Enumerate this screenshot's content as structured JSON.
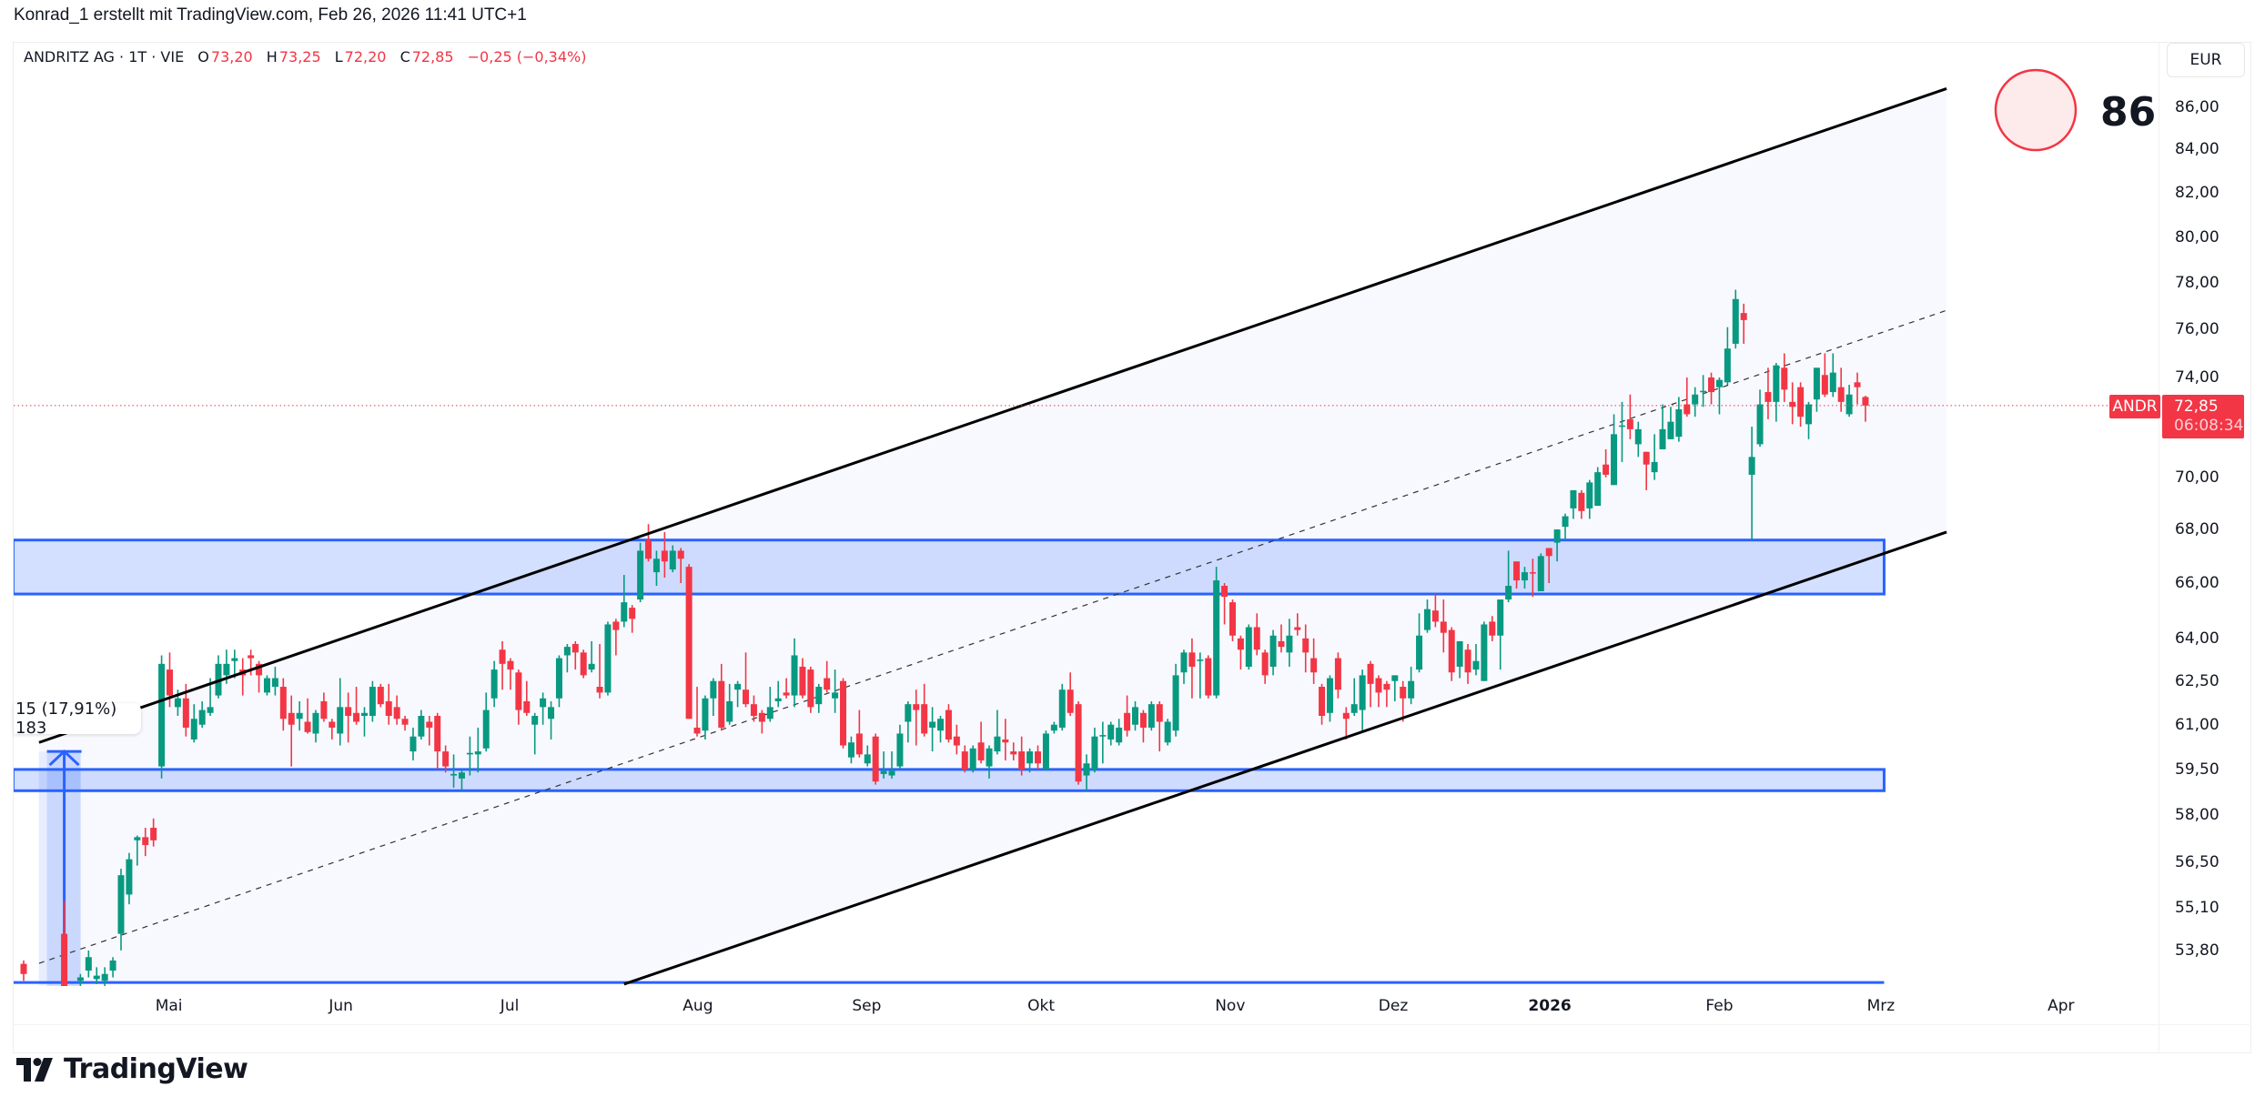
{
  "header": {
    "text": "Konrad_1 erstellt mit TradingView.com, Feb 26, 2026 11:41 UTC+1"
  },
  "legend": {
    "symbol": "ANDRITZ AG · 1T · VIE",
    "o_label": "O",
    "o": "73,20",
    "h_label": "H",
    "h": "73,25",
    "l_label": "L",
    "l": "72,20",
    "c_label": "C",
    "c": "72,85",
    "change": "−0,25 (−0,34%)"
  },
  "price_axis": {
    "currency": "EUR",
    "labels": [
      "86,00",
      "84,00",
      "82,00",
      "80,00",
      "78,00",
      "76,00",
      "74,00",
      "70,00",
      "68,00",
      "66,00",
      "64,00",
      "62,50",
      "61,00",
      "59,50",
      "58,00",
      "56,50",
      "55,10",
      "53,80"
    ],
    "symbol_tag": "ANDR",
    "last_price": "72,85",
    "countdown": "06:08:34"
  },
  "score": {
    "value": "86"
  },
  "measure": {
    "label": "15 (17,91%) 183"
  },
  "logo": {
    "text": "TradingView"
  },
  "colors": {
    "up": "#089981",
    "down": "#f23645",
    "zone": "#2962ff",
    "channel": "#000000"
  },
  "chart_data": {
    "type": "candlestick",
    "title": "ANDRITZ AG · 1T · VIE",
    "scale": "log",
    "ylim": [
      52.85,
      86.9
    ],
    "x_ticks": [
      {
        "label": "Mai",
        "bar": 17.9
      },
      {
        "label": "Jun",
        "bar": 39.1
      },
      {
        "label": "Jul",
        "bar": 59.9
      },
      {
        "label": "Aug",
        "bar": 83.1
      },
      {
        "label": "Sep",
        "bar": 103.9
      },
      {
        "label": "Okt",
        "bar": 125.4
      },
      {
        "label": "Nov",
        "bar": 148.7
      },
      {
        "label": "Dez",
        "bar": 168.8
      },
      {
        "label": "2026",
        "bar": 188.1,
        "bold": true
      },
      {
        "label": "Feb",
        "bar": 209
      },
      {
        "label": "Mrz",
        "bar": 228.9
      },
      {
        "label": "Apr",
        "bar": 251.1
      }
    ],
    "ohlc": [
      [
        53.4,
        53.5,
        52.9,
        53.1
      ],
      null,
      null,
      null,
      null,
      [
        54.3,
        55.3,
        50.8,
        51.6
      ],
      null,
      [
        52.9,
        53.1,
        52.7,
        53.0
      ],
      [
        53.2,
        53.8,
        53.0,
        53.6
      ],
      [
        52.95,
        53.3,
        52.8,
        53.05
      ],
      [
        52.9,
        53.3,
        52.7,
        53.1
      ],
      [
        53.2,
        53.6,
        53.0,
        53.5
      ],
      [
        54.3,
        56.3,
        53.8,
        56.1
      ],
      [
        55.5,
        56.8,
        55.2,
        56.6
      ],
      [
        57.2,
        57.35,
        56.4,
        57.3
      ],
      [
        57.3,
        57.6,
        56.7,
        57.05
      ],
      [
        57.6,
        57.9,
        57.0,
        57.2
      ],
      [
        59.6,
        63.4,
        59.2,
        63.1
      ],
      [
        62.9,
        63.5,
        61.6,
        62.0
      ],
      [
        61.6,
        62.2,
        61.3,
        61.9
      ],
      [
        61.9,
        62.4,
        60.6,
        60.9
      ],
      [
        60.5,
        61.7,
        60.4,
        61.2
      ],
      [
        61.0,
        61.8,
        60.9,
        61.5
      ],
      [
        61.4,
        62.6,
        61.3,
        61.6
      ],
      [
        62.0,
        63.4,
        61.9,
        63.1
      ],
      [
        62.7,
        63.6,
        62.4,
        63.1
      ],
      [
        63.2,
        63.6,
        62.6,
        63.3
      ],
      [
        62.9,
        63.3,
        62.0,
        62.7
      ],
      [
        63.4,
        63.6,
        62.7,
        63.3
      ],
      [
        63.1,
        63.2,
        62.1,
        62.7
      ],
      [
        62.1,
        62.7,
        62.0,
        62.6
      ],
      [
        62.3,
        63.0,
        62.0,
        62.6
      ],
      [
        62.3,
        62.6,
        60.8,
        61.2
      ],
      [
        61.4,
        62.0,
        59.6,
        61.0
      ],
      [
        61.2,
        61.8,
        60.8,
        61.4
      ],
      [
        61.1,
        61.9,
        60.7,
        60.75
      ],
      [
        60.7,
        61.5,
        60.4,
        61.4
      ],
      [
        61.8,
        62.1,
        61.1,
        61.2
      ],
      [
        61.1,
        61.2,
        60.5,
        60.9
      ],
      [
        60.7,
        62.6,
        60.3,
        61.6
      ],
      [
        61.6,
        62.1,
        60.4,
        61.3
      ],
      [
        61.4,
        62.3,
        61.0,
        61.1
      ],
      [
        61.3,
        61.6,
        60.6,
        61.4
      ],
      [
        61.3,
        62.5,
        61.1,
        62.3
      ],
      [
        62.3,
        62.4,
        61.6,
        61.7
      ],
      [
        61.8,
        62.4,
        61.0,
        61.3
      ],
      [
        61.6,
        62.0,
        61.0,
        61.2
      ],
      [
        61.2,
        61.3,
        60.8,
        61.0
      ],
      [
        60.1,
        60.9,
        59.8,
        60.6
      ],
      [
        60.6,
        61.5,
        60.5,
        61.3
      ],
      [
        61.1,
        61.3,
        60.3,
        60.9
      ],
      [
        61.3,
        61.4,
        59.5,
        60.1
      ],
      [
        60.1,
        60.3,
        59.4,
        59.6
      ],
      [
        59.3,
        60.0,
        58.9,
        59.35
      ],
      [
        59.2,
        59.5,
        58.8,
        59.4
      ],
      [
        60.0,
        60.6,
        59.3,
        60.05
      ],
      [
        60.0,
        60.9,
        59.4,
        60.1
      ],
      [
        60.2,
        62.1,
        60.1,
        61.5
      ],
      [
        61.9,
        63.2,
        61.6,
        62.9
      ],
      [
        63.6,
        63.9,
        62.2,
        63.1
      ],
      [
        63.2,
        63.3,
        62.2,
        62.9
      ],
      [
        62.8,
        62.9,
        61.0,
        61.5
      ],
      [
        61.8,
        62.5,
        61.3,
        61.4
      ],
      [
        61.0,
        61.4,
        60.0,
        61.3
      ],
      [
        61.6,
        62.1,
        61.0,
        61.9
      ],
      [
        61.2,
        61.8,
        60.5,
        61.6
      ],
      [
        61.9,
        63.4,
        61.6,
        63.3
      ],
      [
        63.4,
        63.8,
        62.8,
        63.7
      ],
      [
        63.8,
        63.9,
        62.9,
        63.5
      ],
      [
        63.5,
        63.6,
        62.6,
        62.7
      ],
      [
        62.9,
        63.9,
        62.8,
        63.1
      ],
      [
        62.3,
        63.8,
        61.9,
        62.1
      ],
      [
        62.1,
        64.6,
        62.0,
        64.5
      ],
      [
        64.6,
        64.7,
        63.4,
        64.3
      ],
      [
        64.6,
        66.3,
        64.4,
        65.3
      ],
      [
        65.1,
        65.2,
        64.2,
        64.7
      ],
      [
        65.4,
        67.5,
        65.3,
        67.2
      ],
      [
        67.6,
        68.2,
        66.8,
        66.9
      ],
      [
        66.4,
        67.2,
        65.9,
        66.9
      ],
      [
        67.2,
        67.9,
        66.2,
        66.8
      ],
      [
        66.5,
        67.4,
        66.4,
        67.2
      ],
      [
        67.2,
        67.3,
        66.0,
        66.9
      ],
      [
        66.6,
        66.7,
        61.2,
        61.2
      ],
      [
        60.9,
        62.3,
        60.6,
        60.7
      ],
      [
        60.8,
        62.0,
        60.5,
        61.9
      ],
      [
        61.9,
        62.6,
        61.3,
        62.5
      ],
      [
        62.5,
        63.1,
        60.8,
        60.9
      ],
      [
        61.1,
        62.4,
        61.0,
        61.8
      ],
      [
        62.2,
        62.5,
        61.6,
        62.4
      ],
      [
        62.2,
        63.5,
        61.6,
        61.7
      ],
      [
        61.7,
        62.0,
        61.1,
        61.3
      ],
      [
        61.4,
        61.5,
        60.7,
        61.1
      ],
      [
        61.2,
        62.3,
        61.1,
        61.6
      ],
      [
        61.8,
        62.5,
        61.6,
        61.9
      ],
      [
        62.1,
        62.6,
        61.9,
        62.0
      ],
      [
        62.0,
        64.0,
        61.6,
        63.4
      ],
      [
        63.0,
        63.3,
        61.9,
        62.0
      ],
      [
        62.9,
        63.0,
        61.4,
        61.6
      ],
      [
        61.7,
        62.4,
        61.4,
        62.3
      ],
      [
        62.6,
        63.2,
        62.1,
        62.2
      ],
      [
        61.9,
        62.9,
        61.4,
        62.1
      ],
      [
        62.5,
        62.6,
        60.2,
        60.3
      ],
      [
        59.9,
        60.6,
        59.7,
        60.4
      ],
      [
        60.7,
        61.5,
        59.9,
        60.0
      ],
      [
        59.7,
        60.3,
        59.6,
        60.0
      ],
      [
        60.6,
        60.7,
        59.0,
        59.1
      ],
      [
        59.35,
        60.1,
        59.2,
        59.45
      ],
      [
        59.3,
        60.1,
        59.2,
        59.45
      ],
      [
        59.6,
        61.0,
        59.5,
        60.7
      ],
      [
        61.1,
        61.8,
        60.4,
        61.7
      ],
      [
        61.7,
        62.2,
        60.3,
        61.5
      ],
      [
        61.7,
        62.4,
        60.6,
        60.7
      ],
      [
        60.9,
        61.6,
        60.1,
        61.1
      ],
      [
        60.8,
        61.3,
        60.4,
        61.2
      ],
      [
        61.5,
        61.7,
        60.4,
        60.5
      ],
      [
        60.6,
        61.0,
        60.0,
        60.3
      ],
      [
        60.1,
        60.3,
        59.4,
        59.5
      ],
      [
        59.5,
        60.3,
        59.4,
        60.2
      ],
      [
        60.4,
        61.1,
        59.7,
        59.8
      ],
      [
        59.6,
        60.3,
        59.2,
        60.2
      ],
      [
        60.1,
        61.5,
        60.0,
        60.6
      ],
      [
        60.5,
        61.2,
        59.8,
        60.4
      ],
      [
        60.1,
        60.4,
        59.8,
        60.0
      ],
      [
        60.1,
        60.6,
        59.3,
        59.5
      ],
      [
        59.7,
        60.2,
        59.4,
        60.1
      ],
      [
        60.1,
        60.3,
        59.5,
        59.7
      ],
      [
        59.5,
        60.8,
        59.5,
        60.7
      ],
      [
        60.8,
        61.1,
        60.7,
        61.0
      ],
      [
        60.9,
        62.4,
        60.8,
        62.2
      ],
      [
        62.2,
        62.8,
        61.3,
        61.4
      ],
      [
        61.7,
        61.8,
        59.0,
        59.1
      ],
      [
        59.3,
        60.0,
        58.8,
        59.7
      ],
      [
        59.5,
        60.9,
        59.4,
        60.6
      ],
      [
        60.6,
        61.1,
        59.7,
        60.65
      ],
      [
        60.5,
        61.1,
        60.3,
        61.0
      ],
      [
        60.4,
        61.2,
        60.3,
        60.9
      ],
      [
        61.4,
        62.0,
        60.6,
        60.8
      ],
      [
        61.0,
        61.8,
        60.8,
        61.6
      ],
      [
        61.4,
        61.5,
        60.4,
        60.9
      ],
      [
        60.9,
        61.8,
        60.8,
        61.7
      ],
      [
        61.7,
        61.8,
        60.1,
        61.1
      ],
      [
        60.4,
        61.2,
        60.3,
        61.1
      ],
      [
        60.8,
        63.1,
        60.6,
        62.7
      ],
      [
        62.8,
        63.6,
        62.4,
        63.5
      ],
      [
        63.5,
        64.0,
        61.9,
        63.0
      ],
      [
        63.2,
        63.5,
        61.9,
        63.25
      ],
      [
        63.3,
        63.4,
        61.9,
        62.0
      ],
      [
        62.0,
        66.6,
        61.9,
        66.1
      ],
      [
        65.9,
        66.0,
        64.5,
        65.5
      ],
      [
        65.3,
        65.4,
        63.9,
        64.1
      ],
      [
        64.0,
        64.1,
        62.9,
        63.6
      ],
      [
        63.0,
        64.5,
        62.9,
        64.4
      ],
      [
        64.4,
        64.9,
        63.4,
        63.6
      ],
      [
        63.5,
        63.6,
        62.4,
        62.7
      ],
      [
        63.0,
        64.3,
        62.7,
        64.1
      ],
      [
        63.9,
        64.5,
        63.5,
        63.7
      ],
      [
        63.5,
        64.7,
        63.0,
        64.1
      ],
      [
        64.4,
        64.9,
        64.1,
        64.3
      ],
      [
        64.0,
        64.5,
        62.8,
        63.5
      ],
      [
        63.3,
        64.0,
        62.4,
        62.8
      ],
      [
        62.3,
        62.4,
        61.0,
        61.3
      ],
      [
        61.4,
        62.7,
        61.1,
        62.6
      ],
      [
        63.3,
        63.5,
        61.9,
        62.2
      ],
      [
        61.4,
        61.6,
        60.5,
        61.2
      ],
      [
        61.4,
        62.6,
        61.3,
        61.7
      ],
      [
        61.5,
        62.9,
        60.8,
        62.7
      ],
      [
        63.1,
        63.2,
        61.6,
        62.4
      ],
      [
        62.6,
        62.7,
        61.6,
        62.1
      ],
      [
        62.4,
        62.5,
        61.6,
        62.2
      ],
      [
        62.5,
        62.7,
        61.8,
        62.7
      ],
      [
        62.3,
        62.5,
        61.1,
        61.9
      ],
      [
        61.9,
        63.0,
        61.7,
        62.5
      ],
      [
        62.9,
        64.9,
        62.8,
        64.1
      ],
      [
        64.3,
        65.4,
        64.2,
        65.05
      ],
      [
        65.0,
        65.6,
        64.4,
        64.6
      ],
      [
        64.6,
        65.4,
        63.5,
        64.2
      ],
      [
        64.3,
        64.4,
        62.5,
        62.8
      ],
      [
        63.0,
        63.9,
        62.6,
        63.9
      ],
      [
        63.6,
        63.8,
        62.4,
        62.8
      ],
      [
        62.9,
        63.8,
        62.7,
        63.2
      ],
      [
        62.5,
        64.6,
        62.5,
        64.5
      ],
      [
        64.6,
        64.8,
        63.9,
        64.1
      ],
      [
        64.1,
        65.4,
        62.9,
        65.4
      ],
      [
        65.4,
        67.2,
        65.3,
        65.9
      ],
      [
        66.8,
        66.8,
        65.8,
        66.1
      ],
      [
        66.1,
        66.6,
        65.8,
        66.4
      ],
      [
        66.4,
        66.9,
        65.5,
        66.35
      ],
      [
        65.7,
        67.1,
        65.7,
        67.0
      ],
      [
        67.3,
        67.3,
        66.0,
        67.0
      ],
      [
        67.5,
        68.0,
        66.8,
        68.0
      ],
      [
        68.1,
        68.6,
        67.6,
        68.5
      ],
      [
        68.8,
        69.5,
        68.4,
        69.5
      ],
      [
        69.4,
        69.5,
        68.4,
        68.7
      ],
      [
        68.8,
        69.9,
        68.4,
        69.8
      ],
      [
        68.9,
        70.4,
        68.9,
        70.2
      ],
      [
        70.5,
        71.1,
        70.0,
        70.1
      ],
      [
        69.7,
        72.5,
        69.7,
        71.7
      ],
      [
        72.0,
        73.0,
        70.6,
        72.05
      ],
      [
        72.3,
        73.3,
        71.5,
        71.9
      ],
      [
        71.3,
        72.2,
        70.8,
        71.9
      ],
      [
        71.0,
        71.0,
        69.5,
        70.5
      ],
      [
        70.2,
        71.7,
        69.9,
        70.6
      ],
      [
        71.1,
        72.9,
        71.1,
        71.9
      ],
      [
        71.5,
        72.8,
        71.5,
        72.2
      ],
      [
        71.6,
        73.2,
        71.4,
        72.7
      ],
      [
        72.9,
        74.0,
        72.4,
        72.5
      ],
      [
        72.9,
        73.6,
        72.4,
        73.3
      ],
      [
        73.4,
        74.1,
        72.8,
        73.45
      ],
      [
        74.0,
        74.2,
        72.9,
        73.4
      ],
      [
        73.6,
        74.0,
        72.5,
        73.9
      ],
      [
        73.8,
        76.1,
        73.7,
        75.2
      ],
      [
        75.4,
        77.7,
        75.2,
        77.3
      ],
      [
        76.7,
        77.1,
        75.4,
        76.4
      ],
      [
        70.1,
        72.0,
        67.6,
        70.8
      ],
      [
        71.3,
        73.5,
        71.2,
        72.9
      ],
      [
        73.4,
        74.4,
        72.3,
        73.0
      ],
      [
        73.0,
        74.6,
        72.2,
        74.5
      ],
      [
        74.4,
        75.0,
        73.0,
        73.5
      ],
      [
        73.0,
        73.8,
        72.1,
        72.8
      ],
      [
        73.6,
        73.8,
        72.0,
        72.4
      ],
      [
        72.1,
        73.0,
        71.5,
        72.9
      ],
      [
        73.1,
        74.4,
        72.6,
        74.4
      ],
      [
        74.1,
        75.0,
        73.2,
        73.3
      ],
      [
        73.4,
        75.0,
        73.2,
        74.2
      ],
      [
        73.6,
        74.4,
        72.6,
        73.0
      ],
      [
        72.5,
        73.7,
        72.4,
        73.3
      ],
      [
        73.8,
        74.2,
        72.9,
        73.6
      ],
      [
        73.2,
        73.25,
        72.2,
        72.85
      ]
    ],
    "last_price": 72.85,
    "drawings": {
      "channel_upper": {
        "from": [
          1.9,
          60.4
        ],
        "to": [
          237,
          86.9
        ]
      },
      "channel_lower": {
        "from": [
          74,
          52.8
        ],
        "to": [
          237,
          67.9
        ]
      },
      "resistance_zone": {
        "from_bar": -1.3,
        "to_bar": 229.3,
        "low": 65.6,
        "high": 67.6
      },
      "support_zone": {
        "from_bar": -1.3,
        "to_bar": 229.3,
        "low": 58.8,
        "high": 59.5
      },
      "base_line": {
        "from_bar": -1.3,
        "to_bar": 229.3,
        "price": 52.85
      },
      "measure": {
        "bar": 5,
        "from_price": 52.0,
        "to_price": 60.1
      }
    }
  }
}
